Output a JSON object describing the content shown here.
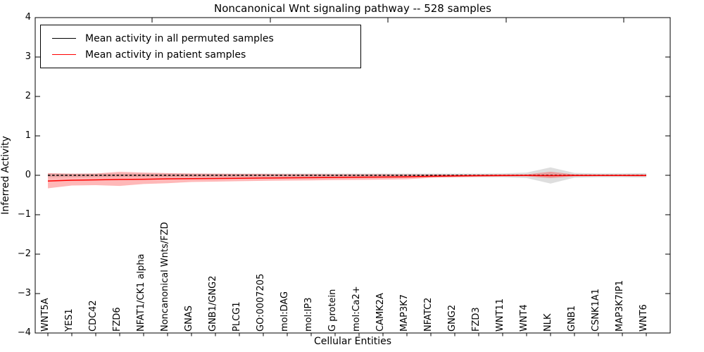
{
  "chart_data": {
    "type": "line",
    "title": "Noncanonical Wnt signaling pathway -- 528 samples",
    "xlabel": "Cellular Entities",
    "ylabel": "Inferred Activity",
    "ylim": [
      -4,
      4
    ],
    "ytick_labels": [
      "4",
      "3",
      "2",
      "1",
      "0",
      "−1",
      "−2",
      "−3",
      "−4"
    ],
    "ytick_values": [
      4,
      3,
      2,
      1,
      0,
      -1,
      -2,
      -3,
      -4
    ],
    "grid": false,
    "legend_position": "upper-left",
    "categories": [
      "WNT5A",
      "YES1",
      "CDC42",
      "FZD6",
      "NFAT1/CK1 alpha",
      "Noncanonical Wnts/FZD",
      "GNAS",
      "GNB1/GNG2",
      "PLCG1",
      "GO:0007205",
      "mol:DAG",
      "mol:IP3",
      "G protein",
      "mol:Ca2+",
      "CAMK2A",
      "MAP3K7",
      "NFATC2",
      "GNG2",
      "FZD3",
      "WNT11",
      "WNT4",
      "NLK",
      "GNB1",
      "CSNK1A1",
      "MAP3K7IP1",
      "WNT6"
    ],
    "series": [
      {
        "name": "Mean activity in all permuted samples",
        "color": "#000000",
        "style": "dashed",
        "values": [
          0,
          0,
          0,
          0,
          0,
          0,
          0,
          0,
          0,
          0,
          0,
          0,
          0,
          0,
          0,
          0,
          0,
          0,
          0,
          0,
          0,
          0,
          0,
          0,
          0,
          0
        ]
      },
      {
        "name": "Mean activity in patient samples",
        "color": "#ff0000",
        "style": "solid",
        "values": [
          -0.145,
          -0.125,
          -0.115,
          -0.105,
          -0.1,
          -0.09,
          -0.085,
          -0.08,
          -0.075,
          -0.07,
          -0.065,
          -0.06,
          -0.055,
          -0.05,
          -0.045,
          -0.04,
          -0.025,
          -0.015,
          -0.01,
          -0.005,
          -0.005,
          -0.01,
          -0.005,
          -0.005,
          -0.005,
          -0.005
        ]
      }
    ],
    "bands": [
      {
        "name": "permuted-samples-band",
        "color": "rgba(0,0,0,0.13)",
        "upper": [
          0.045,
          0.045,
          0.045,
          0.045,
          0.045,
          0.045,
          0.045,
          0.045,
          0.045,
          0.045,
          0.045,
          0.045,
          0.045,
          0.045,
          0.045,
          0.045,
          0.045,
          0.045,
          0.045,
          0.05,
          0.07,
          0.2,
          0.06,
          0.05,
          0.05,
          0.055
        ],
        "lower": [
          -0.045,
          -0.045,
          -0.045,
          -0.045,
          -0.045,
          -0.045,
          -0.045,
          -0.045,
          -0.045,
          -0.045,
          -0.045,
          -0.045,
          -0.045,
          -0.045,
          -0.045,
          -0.045,
          -0.045,
          -0.045,
          -0.045,
          -0.05,
          -0.07,
          -0.21,
          -0.06,
          -0.05,
          -0.05,
          -0.055
        ]
      },
      {
        "name": "patient-samples-band",
        "color": "rgba(255,0,0,0.28)",
        "upper": [
          0.055,
          0.04,
          0.045,
          0.09,
          0.07,
          0.055,
          0.045,
          0.04,
          0.035,
          0.035,
          0.03,
          0.03,
          0.025,
          0.025,
          0.025,
          0.02,
          0.02,
          0.02,
          0.02,
          0.02,
          0.025,
          0.09,
          0.025,
          0.02,
          0.02,
          0.02
        ],
        "lower": [
          -0.33,
          -0.26,
          -0.25,
          -0.27,
          -0.22,
          -0.2,
          -0.17,
          -0.16,
          -0.15,
          -0.14,
          -0.135,
          -0.13,
          -0.12,
          -0.115,
          -0.11,
          -0.1,
          -0.065,
          -0.05,
          -0.04,
          -0.035,
          -0.03,
          -0.07,
          -0.03,
          -0.025,
          -0.025,
          -0.03
        ]
      }
    ],
    "legend": {
      "entries": [
        {
          "label": "Mean activity in all permuted samples",
          "color": "#000000"
        },
        {
          "label": "Mean activity in patient samples",
          "color": "#ff0000"
        }
      ]
    }
  }
}
